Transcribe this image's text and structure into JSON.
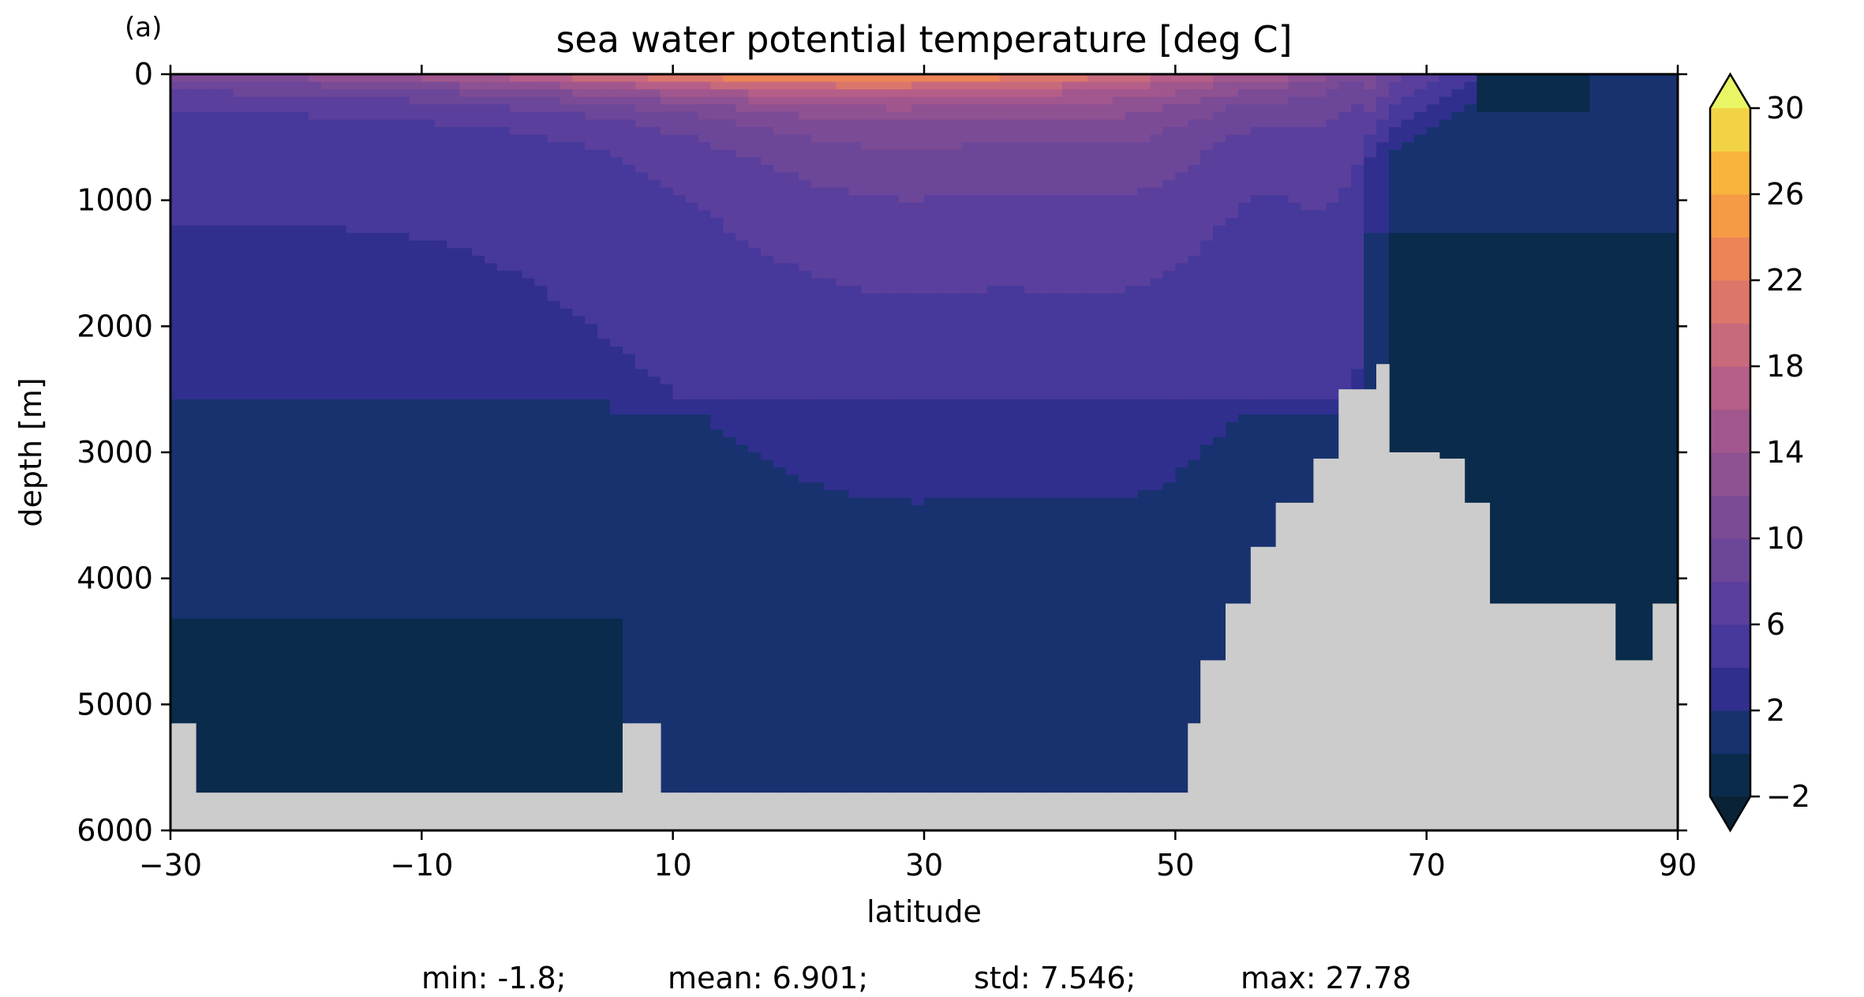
{
  "panel_label": "(a)",
  "chart_data": {
    "type": "heatmap",
    "title": "sea water potential temperature [deg C]",
    "xlabel": "latitude",
    "ylabel": "depth [m]",
    "xlim": [
      -30,
      90
    ],
    "ylim": [
      6000,
      0
    ],
    "x_ticks": [
      -30,
      -10,
      10,
      30,
      50,
      70,
      90
    ],
    "x_tick_labels": [
      "−30",
      "−10",
      "10",
      "30",
      "50",
      "70",
      "90"
    ],
    "y_ticks": [
      0,
      1000,
      2000,
      3000,
      4000,
      5000,
      6000
    ],
    "y_tick_labels": [
      "0",
      "1000",
      "2000",
      "3000",
      "4000",
      "5000",
      "6000"
    ],
    "colorbar": {
      "levels": [
        -2,
        0,
        2,
        4,
        6,
        8,
        10,
        12,
        14,
        16,
        18,
        20,
        22,
        24,
        26,
        28,
        30
      ],
      "tick_values": [
        -2,
        2,
        6,
        10,
        14,
        18,
        22,
        26,
        30
      ],
      "tick_labels": [
        "−2",
        "2",
        "6",
        "10",
        "14",
        "18",
        "22",
        "26",
        "30"
      ],
      "extend": "both",
      "colors": [
        "#0a2b4b",
        "#18326f",
        "#302f8e",
        "#46399b",
        "#5a3f9d",
        "#6c4699",
        "#7b4b95",
        "#8e5192",
        "#a1578d",
        "#b55e88",
        "#c86a7c",
        "#dc766b",
        "#ec8457",
        "#f59a45",
        "#f8b43c",
        "#f3d346",
        "#eef065"
      ],
      "under_color": "#0a2236",
      "over_color": "#e8f565"
    },
    "land_color": "#cccccc",
    "sections": {
      "surface_warm_layer": {
        "lat_range": [
          -30,
          62
        ],
        "depth_range": [
          0,
          600
        ],
        "values_degC": "2 to 27.8, warmest near 10 to 40 latitude"
      },
      "thermocline_purple": {
        "lat_range": [
          -30,
          65
        ],
        "depth_range": [
          600,
          2300
        ],
        "values_degC": "4 to 10"
      },
      "intermediate_indigo": {
        "lat_range": [
          -30,
          63
        ],
        "depth_range": [
          600,
          2800
        ],
        "values_degC": "2 to 4"
      },
      "deep_blue": {
        "lat_range": [
          -30,
          74
        ],
        "depth_range": [
          2300,
          5700
        ],
        "values_degC": "0 to 2"
      },
      "bottom_dark": {
        "lat_range": [
          -30,
          6
        ],
        "depth_range": [
          4200,
          5700
        ],
        "values_degC": "-2 to 0"
      },
      "arctic_dark": {
        "lat_range": [
          65,
          90
        ],
        "depth_range": [
          1200,
          4700
        ],
        "values_degC": "-2 to 0"
      }
    },
    "stats": {
      "min": -1.8,
      "mean": 6.901,
      "std": 7.546,
      "max": 27.78
    }
  },
  "stats_line": {
    "min": "min: -1.8;",
    "mean": "mean: 6.901;",
    "std": "std: 7.546;",
    "max": "max: 27.78"
  }
}
